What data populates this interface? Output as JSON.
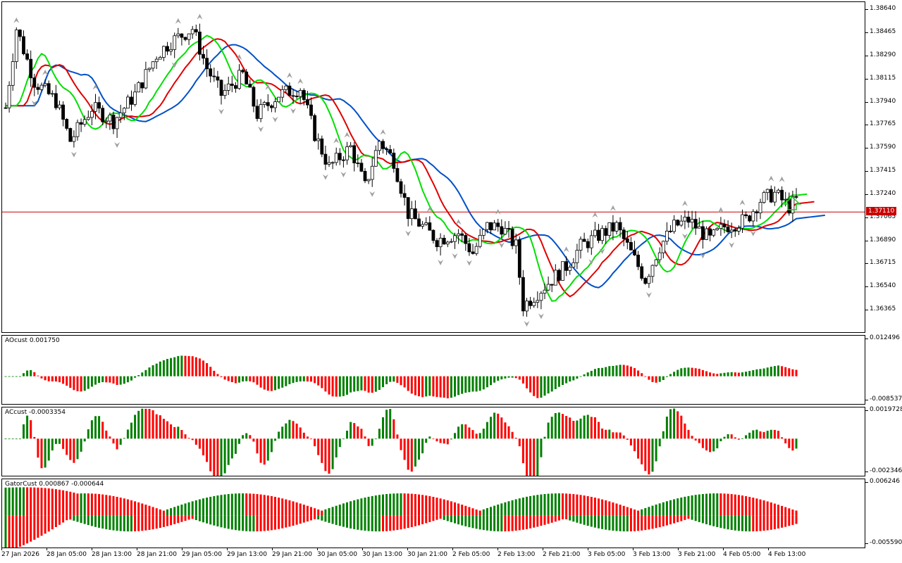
{
  "main": {
    "price_min": 1.362,
    "price_max": 1.387,
    "current_price": "1.37110",
    "current_price_value": 1.3711,
    "price_ticks": [
      "1.38640",
      "1.38465",
      "1.38290",
      "1.38115",
      "1.37940",
      "1.37765",
      "1.37590",
      "1.37415",
      "1.37240",
      "1.37065",
      "1.36890",
      "1.36715",
      "1.36540",
      "1.36365"
    ],
    "colors": {
      "bull_body": "#ffffff",
      "bear_body": "#000000",
      "jaw": "#0050c8",
      "teeth": "#e00000",
      "lips": "#00e000",
      "price_line": "#c80000",
      "fractal": "#a0a0a0",
      "signal_arrow": "#22cc22"
    },
    "signal_icon": "up-arrow-icon"
  },
  "ao": {
    "title": "AOcust 0.001750",
    "max_label": "0.012496",
    "min_label": "-0.008537",
    "min": -0.008537,
    "max": 0.012496
  },
  "ac": {
    "title": "ACcust -0.0003354",
    "max_label": "0.0019728",
    "min_label": "-0.0023465",
    "min": -0.0023465,
    "max": 0.0019728
  },
  "gator": {
    "title": "GatorCust 0.000867 -0.000644",
    "max_label": "0.006246",
    "min_label": "-0.005590",
    "min": -0.00559,
    "max": 0.006246
  },
  "time_labels": [
    "27 Jan 2026",
    "28 Jan 05:00",
    "28 Jan 13:00",
    "28 Jan 21:00",
    "29 Jan 05:00",
    "29 Jan 13:00",
    "29 Jan 21:00",
    "30 Jan 05:00",
    "30 Jan 13:00",
    "30 Jan 21:00",
    "2 Feb 05:00",
    "2 Feb 13:00",
    "2 Feb 21:00",
    "3 Feb 05:00",
    "3 Feb 13:00",
    "3 Feb 21:00",
    "4 Feb 05:00",
    "4 Feb 13:00"
  ]
}
